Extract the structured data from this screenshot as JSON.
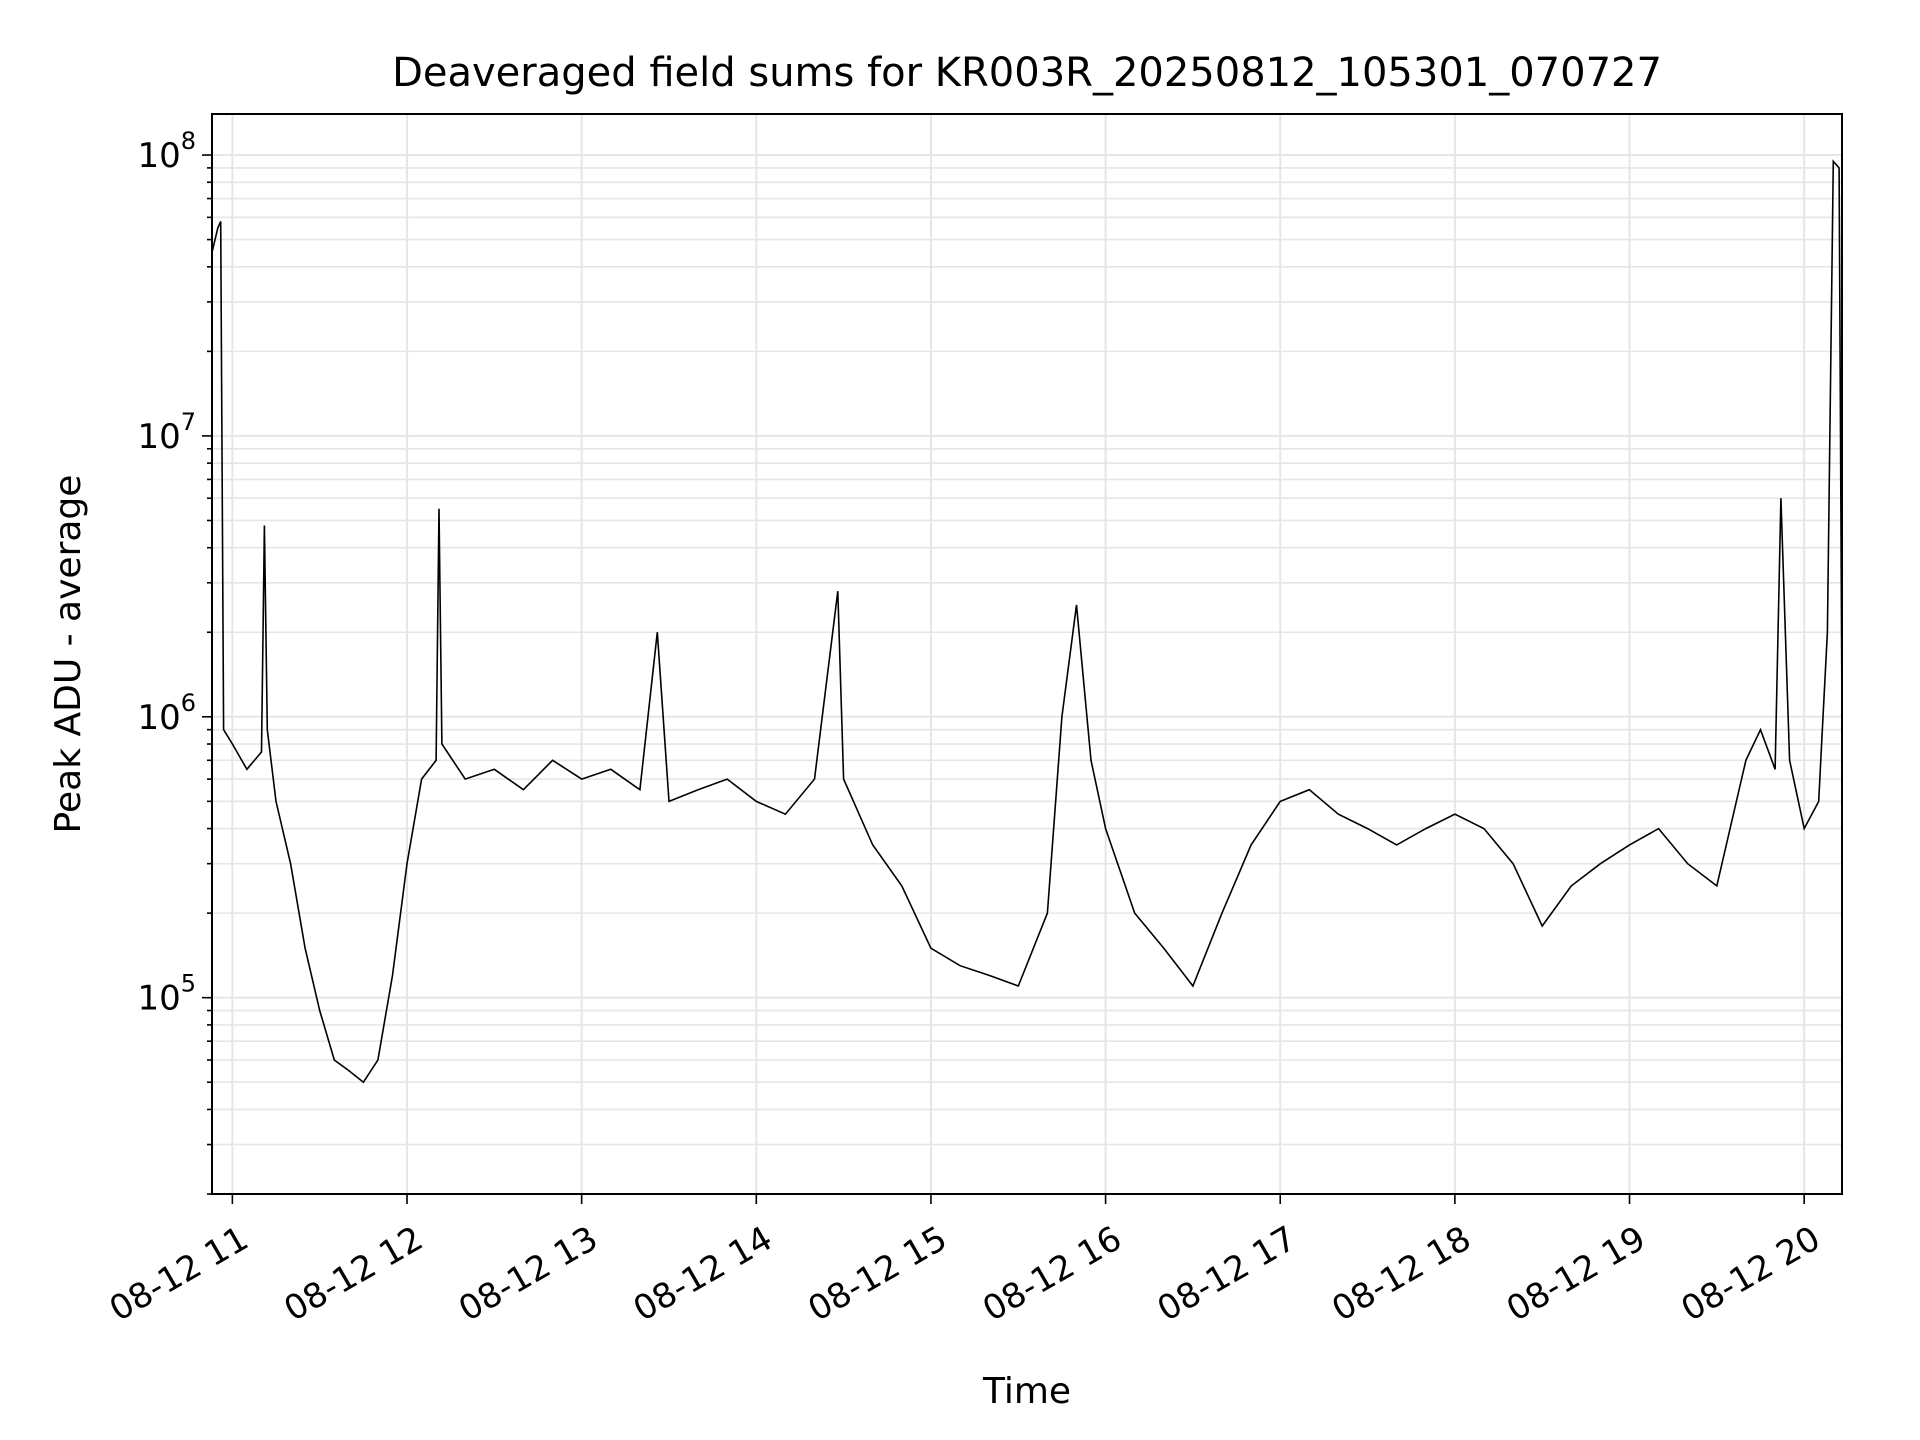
{
  "chart_data": {
    "type": "line",
    "title": "Deaveraged field sums for KR003R_20250812_105301_070727",
    "xlabel": "Time",
    "ylabel": "Peak ADU - average",
    "yscale": "log",
    "ylim": [
      20000,
      140000000
    ],
    "xlim": [
      "2025-08-12 10:53",
      "2025-08-12 20:13"
    ],
    "x_ticks": [
      {
        "label": "08-12 11",
        "value": "2025-08-12 11:00"
      },
      {
        "label": "08-12 12",
        "value": "2025-08-12 12:00"
      },
      {
        "label": "08-12 13",
        "value": "2025-08-12 13:00"
      },
      {
        "label": "08-12 14",
        "value": "2025-08-12 14:00"
      },
      {
        "label": "08-12 15",
        "value": "2025-08-12 15:00"
      },
      {
        "label": "08-12 16",
        "value": "2025-08-12 16:00"
      },
      {
        "label": "08-12 17",
        "value": "2025-08-12 17:00"
      },
      {
        "label": "08-12 18",
        "value": "2025-08-12 18:00"
      },
      {
        "label": "08-12 19",
        "value": "2025-08-12 19:00"
      },
      {
        "label": "08-12 20",
        "value": "2025-08-12 20:00"
      }
    ],
    "y_ticks": [
      {
        "base": "10",
        "exp": "5",
        "value": 100000
      },
      {
        "base": "10",
        "exp": "6",
        "value": 1000000
      },
      {
        "base": "10",
        "exp": "7",
        "value": 10000000
      },
      {
        "base": "10",
        "exp": "8",
        "value": 100000000
      }
    ],
    "grid": true,
    "line_color": "#000000",
    "grid_color": "#e6e6e6",
    "series": [
      {
        "x": [
          "2025-08-12 10:53",
          "2025-08-12 10:55",
          "2025-08-12 10:56",
          "2025-08-12 10:57",
          "2025-08-12 11:00",
          "2025-08-12 11:05",
          "2025-08-12 11:10",
          "2025-08-12 11:11",
          "2025-08-12 11:12",
          "2025-08-12 11:15",
          "2025-08-12 11:20",
          "2025-08-12 11:25",
          "2025-08-12 11:30",
          "2025-08-12 11:35",
          "2025-08-12 11:40",
          "2025-08-12 11:45",
          "2025-08-12 11:50",
          "2025-08-12 11:55",
          "2025-08-12 12:00",
          "2025-08-12 12:05",
          "2025-08-12 12:10",
          "2025-08-12 12:11",
          "2025-08-12 12:12",
          "2025-08-12 12:20",
          "2025-08-12 12:30",
          "2025-08-12 12:40",
          "2025-08-12 12:50",
          "2025-08-12 13:00",
          "2025-08-12 13:10",
          "2025-08-12 13:20",
          "2025-08-12 13:26",
          "2025-08-12 13:30",
          "2025-08-12 13:40",
          "2025-08-12 13:50",
          "2025-08-12 14:00",
          "2025-08-12 14:10",
          "2025-08-12 14:20",
          "2025-08-12 14:28",
          "2025-08-12 14:30",
          "2025-08-12 14:40",
          "2025-08-12 14:50",
          "2025-08-12 15:00",
          "2025-08-12 15:10",
          "2025-08-12 15:20",
          "2025-08-12 15:30",
          "2025-08-12 15:40",
          "2025-08-12 15:45",
          "2025-08-12 15:50",
          "2025-08-12 15:55",
          "2025-08-12 16:00",
          "2025-08-12 16:10",
          "2025-08-12 16:20",
          "2025-08-12 16:30",
          "2025-08-12 16:40",
          "2025-08-12 16:50",
          "2025-08-12 17:00",
          "2025-08-12 17:10",
          "2025-08-12 17:20",
          "2025-08-12 17:30",
          "2025-08-12 17:40",
          "2025-08-12 17:50",
          "2025-08-12 18:00",
          "2025-08-12 18:10",
          "2025-08-12 18:20",
          "2025-08-12 18:30",
          "2025-08-12 18:40",
          "2025-08-12 18:50",
          "2025-08-12 19:00",
          "2025-08-12 19:10",
          "2025-08-12 19:20",
          "2025-08-12 19:30",
          "2025-08-12 19:40",
          "2025-08-12 19:45",
          "2025-08-12 19:50",
          "2025-08-12 19:52",
          "2025-08-12 19:55",
          "2025-08-12 20:00",
          "2025-08-12 20:05",
          "2025-08-12 20:06",
          "2025-08-12 20:08",
          "2025-08-12 20:10",
          "2025-08-12 20:12",
          "2025-08-12 20:13"
        ],
        "y": [
          45000000,
          55000000,
          58000000,
          900000,
          800000,
          650000,
          750000,
          4800000,
          900000,
          500000,
          300000,
          150000,
          90000,
          60000,
          55000,
          50000,
          60000,
          120000,
          300000,
          600000,
          700000,
          5500000,
          800000,
          600000,
          650000,
          550000,
          700000,
          600000,
          650000,
          550000,
          2000000,
          500000,
          550000,
          600000,
          500000,
          450000,
          600000,
          2800000,
          600000,
          350000,
          250000,
          150000,
          130000,
          120000,
          110000,
          200000,
          1000000,
          2500000,
          700000,
          400000,
          200000,
          150000,
          110000,
          200000,
          350000,
          500000,
          550000,
          450000,
          400000,
          350000,
          400000,
          450000,
          400000,
          300000,
          180000,
          250000,
          300000,
          350000,
          400000,
          300000,
          250000,
          700000,
          900000,
          650000,
          6000000,
          700000,
          400000,
          500000,
          800000,
          2000000,
          95000000,
          90000000,
          1000000
        ]
      }
    ]
  }
}
